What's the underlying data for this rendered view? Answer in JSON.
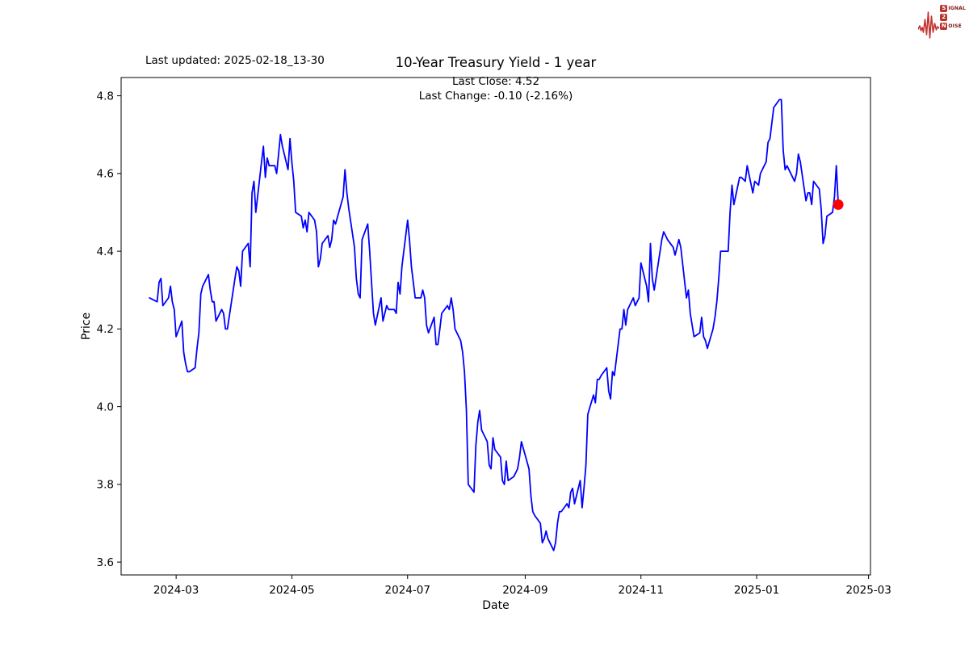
{
  "header": {
    "last_updated": "Last updated: 2025-02-18_13-30",
    "title": "10-Year Treasury Yield - 1 year",
    "subtitle_line1": "Last Close: 4.52",
    "subtitle_line2": "Last Change: -0.10 (-2.16%)"
  },
  "logo": {
    "word1_initial": "S",
    "word1_rest": "IGNAL",
    "word2": "2",
    "word3_initial": "N",
    "word3_rest": "OISE",
    "wave_color": "#c23430",
    "box_color": "#b9322b",
    "text_color": "#7a1416"
  },
  "chart_data": {
    "type": "line",
    "title": "10-Year Treasury Yield - 1 year",
    "xlabel": "Date",
    "ylabel": "Price",
    "line_color": "#0000ff",
    "last_point_color": "#ff0000",
    "last_close": 4.52,
    "last_change": "-0.10 (-2.16%)",
    "grid": false,
    "ylim": [
      3.567,
      4.847
    ],
    "xlim": [
      "2024-02-01",
      "2025-03-02"
    ],
    "yticks": [
      3.6,
      3.8,
      4.0,
      4.2,
      4.4,
      4.6,
      4.8
    ],
    "xticks": [
      {
        "date": "2024-03-01",
        "label": "2024-03"
      },
      {
        "date": "2024-05-01",
        "label": "2024-05"
      },
      {
        "date": "2024-07-01",
        "label": "2024-07"
      },
      {
        "date": "2024-09-01",
        "label": "2024-09"
      },
      {
        "date": "2024-11-01",
        "label": "2024-11"
      },
      {
        "date": "2025-01-01",
        "label": "2025-01"
      },
      {
        "date": "2025-03-01",
        "label": "2025-03"
      }
    ],
    "dates": [
      "2024-02-16",
      "2024-02-20",
      "2024-02-21",
      "2024-02-22",
      "2024-02-23",
      "2024-02-26",
      "2024-02-27",
      "2024-02-28",
      "2024-02-29",
      "2024-03-01",
      "2024-03-04",
      "2024-03-05",
      "2024-03-06",
      "2024-03-07",
      "2024-03-08",
      "2024-03-11",
      "2024-03-12",
      "2024-03-13",
      "2024-03-14",
      "2024-03-15",
      "2024-03-18",
      "2024-03-19",
      "2024-03-20",
      "2024-03-21",
      "2024-03-22",
      "2024-03-25",
      "2024-03-26",
      "2024-03-27",
      "2024-03-28",
      "2024-04-01",
      "2024-04-02",
      "2024-04-03",
      "2024-04-04",
      "2024-04-05",
      "2024-04-08",
      "2024-04-09",
      "2024-04-10",
      "2024-04-11",
      "2024-04-12",
      "2024-04-15",
      "2024-04-16",
      "2024-04-17",
      "2024-04-18",
      "2024-04-19",
      "2024-04-22",
      "2024-04-23",
      "2024-04-24",
      "2024-04-25",
      "2024-04-26",
      "2024-04-29",
      "2024-04-30",
      "2024-05-01",
      "2024-05-02",
      "2024-05-03",
      "2024-05-06",
      "2024-05-07",
      "2024-05-08",
      "2024-05-09",
      "2024-05-10",
      "2024-05-13",
      "2024-05-14",
      "2024-05-15",
      "2024-05-16",
      "2024-05-17",
      "2024-05-20",
      "2024-05-21",
      "2024-05-22",
      "2024-05-23",
      "2024-05-24",
      "2024-05-28",
      "2024-05-29",
      "2024-05-30",
      "2024-05-31",
      "2024-06-03",
      "2024-06-04",
      "2024-06-05",
      "2024-06-06",
      "2024-06-07",
      "2024-06-10",
      "2024-06-11",
      "2024-06-12",
      "2024-06-13",
      "2024-06-14",
      "2024-06-17",
      "2024-06-18",
      "2024-06-20",
      "2024-06-21",
      "2024-06-24",
      "2024-06-25",
      "2024-06-26",
      "2024-06-27",
      "2024-06-28",
      "2024-07-01",
      "2024-07-02",
      "2024-07-03",
      "2024-07-05",
      "2024-07-08",
      "2024-07-09",
      "2024-07-10",
      "2024-07-11",
      "2024-07-12",
      "2024-07-15",
      "2024-07-16",
      "2024-07-17",
      "2024-07-18",
      "2024-07-19",
      "2024-07-22",
      "2024-07-23",
      "2024-07-24",
      "2024-07-25",
      "2024-07-26",
      "2024-07-29",
      "2024-07-30",
      "2024-07-31",
      "2024-08-01",
      "2024-08-02",
      "2024-08-05",
      "2024-08-06",
      "2024-08-07",
      "2024-08-08",
      "2024-08-09",
      "2024-08-12",
      "2024-08-13",
      "2024-08-14",
      "2024-08-15",
      "2024-08-16",
      "2024-08-19",
      "2024-08-20",
      "2024-08-21",
      "2024-08-22",
      "2024-08-23",
      "2024-08-26",
      "2024-08-27",
      "2024-08-28",
      "2024-08-29",
      "2024-08-30",
      "2024-09-03",
      "2024-09-04",
      "2024-09-05",
      "2024-09-06",
      "2024-09-09",
      "2024-09-10",
      "2024-09-11",
      "2024-09-12",
      "2024-09-13",
      "2024-09-16",
      "2024-09-17",
      "2024-09-18",
      "2024-09-19",
      "2024-09-20",
      "2024-09-23",
      "2024-09-24",
      "2024-09-25",
      "2024-09-26",
      "2024-09-27",
      "2024-09-30",
      "2024-10-01",
      "2024-10-02",
      "2024-10-03",
      "2024-10-04",
      "2024-10-07",
      "2024-10-08",
      "2024-10-09",
      "2024-10-10",
      "2024-10-11",
      "2024-10-14",
      "2024-10-15",
      "2024-10-16",
      "2024-10-17",
      "2024-10-18",
      "2024-10-21",
      "2024-10-22",
      "2024-10-23",
      "2024-10-24",
      "2024-10-25",
      "2024-10-28",
      "2024-10-29",
      "2024-10-30",
      "2024-10-31",
      "2024-11-01",
      "2024-11-04",
      "2024-11-05",
      "2024-11-06",
      "2024-11-07",
      "2024-11-08",
      "2024-11-12",
      "2024-11-13",
      "2024-11-14",
      "2024-11-15",
      "2024-11-18",
      "2024-11-19",
      "2024-11-20",
      "2024-11-21",
      "2024-11-22",
      "2024-11-25",
      "2024-11-26",
      "2024-11-27",
      "2024-11-29",
      "2024-12-02",
      "2024-12-03",
      "2024-12-04",
      "2024-12-05",
      "2024-12-06",
      "2024-12-09",
      "2024-12-10",
      "2024-12-11",
      "2024-12-12",
      "2024-12-13",
      "2024-12-16",
      "2024-12-17",
      "2024-12-18",
      "2024-12-19",
      "2024-12-20",
      "2024-12-23",
      "2024-12-24",
      "2024-12-26",
      "2024-12-27",
      "2024-12-30",
      "2024-12-31",
      "2025-01-02",
      "2025-01-03",
      "2025-01-06",
      "2025-01-07",
      "2025-01-08",
      "2025-01-10",
      "2025-01-13",
      "2025-01-14",
      "2025-01-15",
      "2025-01-16",
      "2025-01-17",
      "2025-01-21",
      "2025-01-22",
      "2025-01-23",
      "2025-01-24",
      "2025-01-27",
      "2025-01-28",
      "2025-01-29",
      "2025-01-30",
      "2025-01-31",
      "2025-02-03",
      "2025-02-04",
      "2025-02-05",
      "2025-02-06",
      "2025-02-07",
      "2025-02-10",
      "2025-02-11",
      "2025-02-12",
      "2025-02-13"
    ],
    "values": [
      4.28,
      4.27,
      4.32,
      4.33,
      4.26,
      4.28,
      4.31,
      4.27,
      4.25,
      4.18,
      4.22,
      4.14,
      4.11,
      4.09,
      4.09,
      4.1,
      4.15,
      4.19,
      4.29,
      4.31,
      4.34,
      4.3,
      4.27,
      4.27,
      4.22,
      4.25,
      4.24,
      4.2,
      4.2,
      4.33,
      4.36,
      4.35,
      4.31,
      4.4,
      4.42,
      4.36,
      4.55,
      4.58,
      4.5,
      4.63,
      4.67,
      4.59,
      4.64,
      4.62,
      4.62,
      4.6,
      4.65,
      4.7,
      4.67,
      4.61,
      4.69,
      4.63,
      4.58,
      4.5,
      4.49,
      4.46,
      4.48,
      4.45,
      4.5,
      4.48,
      4.45,
      4.36,
      4.38,
      4.42,
      4.44,
      4.41,
      4.43,
      4.48,
      4.47,
      4.54,
      4.61,
      4.55,
      4.51,
      4.41,
      4.33,
      4.29,
      4.28,
      4.43,
      4.47,
      4.4,
      4.32,
      4.24,
      4.21,
      4.28,
      4.22,
      4.26,
      4.25,
      4.25,
      4.24,
      4.32,
      4.29,
      4.36,
      4.48,
      4.43,
      4.36,
      4.28,
      4.28,
      4.3,
      4.28,
      4.21,
      4.19,
      4.23,
      4.16,
      4.16,
      4.2,
      4.24,
      4.26,
      4.25,
      4.28,
      4.25,
      4.2,
      4.17,
      4.14,
      4.09,
      3.99,
      3.8,
      3.78,
      3.9,
      3.96,
      3.99,
      3.94,
      3.91,
      3.85,
      3.84,
      3.92,
      3.89,
      3.87,
      3.81,
      3.8,
      3.86,
      3.81,
      3.82,
      3.83,
      3.84,
      3.87,
      3.91,
      3.84,
      3.77,
      3.73,
      3.72,
      3.7,
      3.65,
      3.66,
      3.68,
      3.66,
      3.63,
      3.65,
      3.7,
      3.73,
      3.73,
      3.75,
      3.74,
      3.78,
      3.79,
      3.75,
      3.81,
      3.74,
      3.79,
      3.85,
      3.98,
      4.03,
      4.01,
      4.07,
      4.07,
      4.08,
      4.1,
      4.04,
      4.02,
      4.09,
      4.08,
      4.2,
      4.2,
      4.25,
      4.21,
      4.25,
      4.28,
      4.26,
      4.27,
      4.28,
      4.37,
      4.31,
      4.27,
      4.42,
      4.33,
      4.3,
      4.43,
      4.45,
      4.44,
      4.43,
      4.41,
      4.39,
      4.41,
      4.43,
      4.41,
      4.28,
      4.3,
      4.24,
      4.18,
      4.19,
      4.23,
      4.18,
      4.17,
      4.15,
      4.2,
      4.23,
      4.27,
      4.33,
      4.4,
      4.4,
      4.4,
      4.5,
      4.57,
      4.52,
      4.59,
      4.59,
      4.58,
      4.62,
      4.55,
      4.58,
      4.57,
      4.6,
      4.63,
      4.68,
      4.69,
      4.77,
      4.79,
      4.79,
      4.66,
      4.61,
      4.62,
      4.58,
      4.6,
      4.65,
      4.63,
      4.53,
      4.55,
      4.55,
      4.52,
      4.58,
      4.56,
      4.51,
      4.42,
      4.44,
      4.49,
      4.5,
      4.54,
      4.62,
      4.52
    ]
  }
}
